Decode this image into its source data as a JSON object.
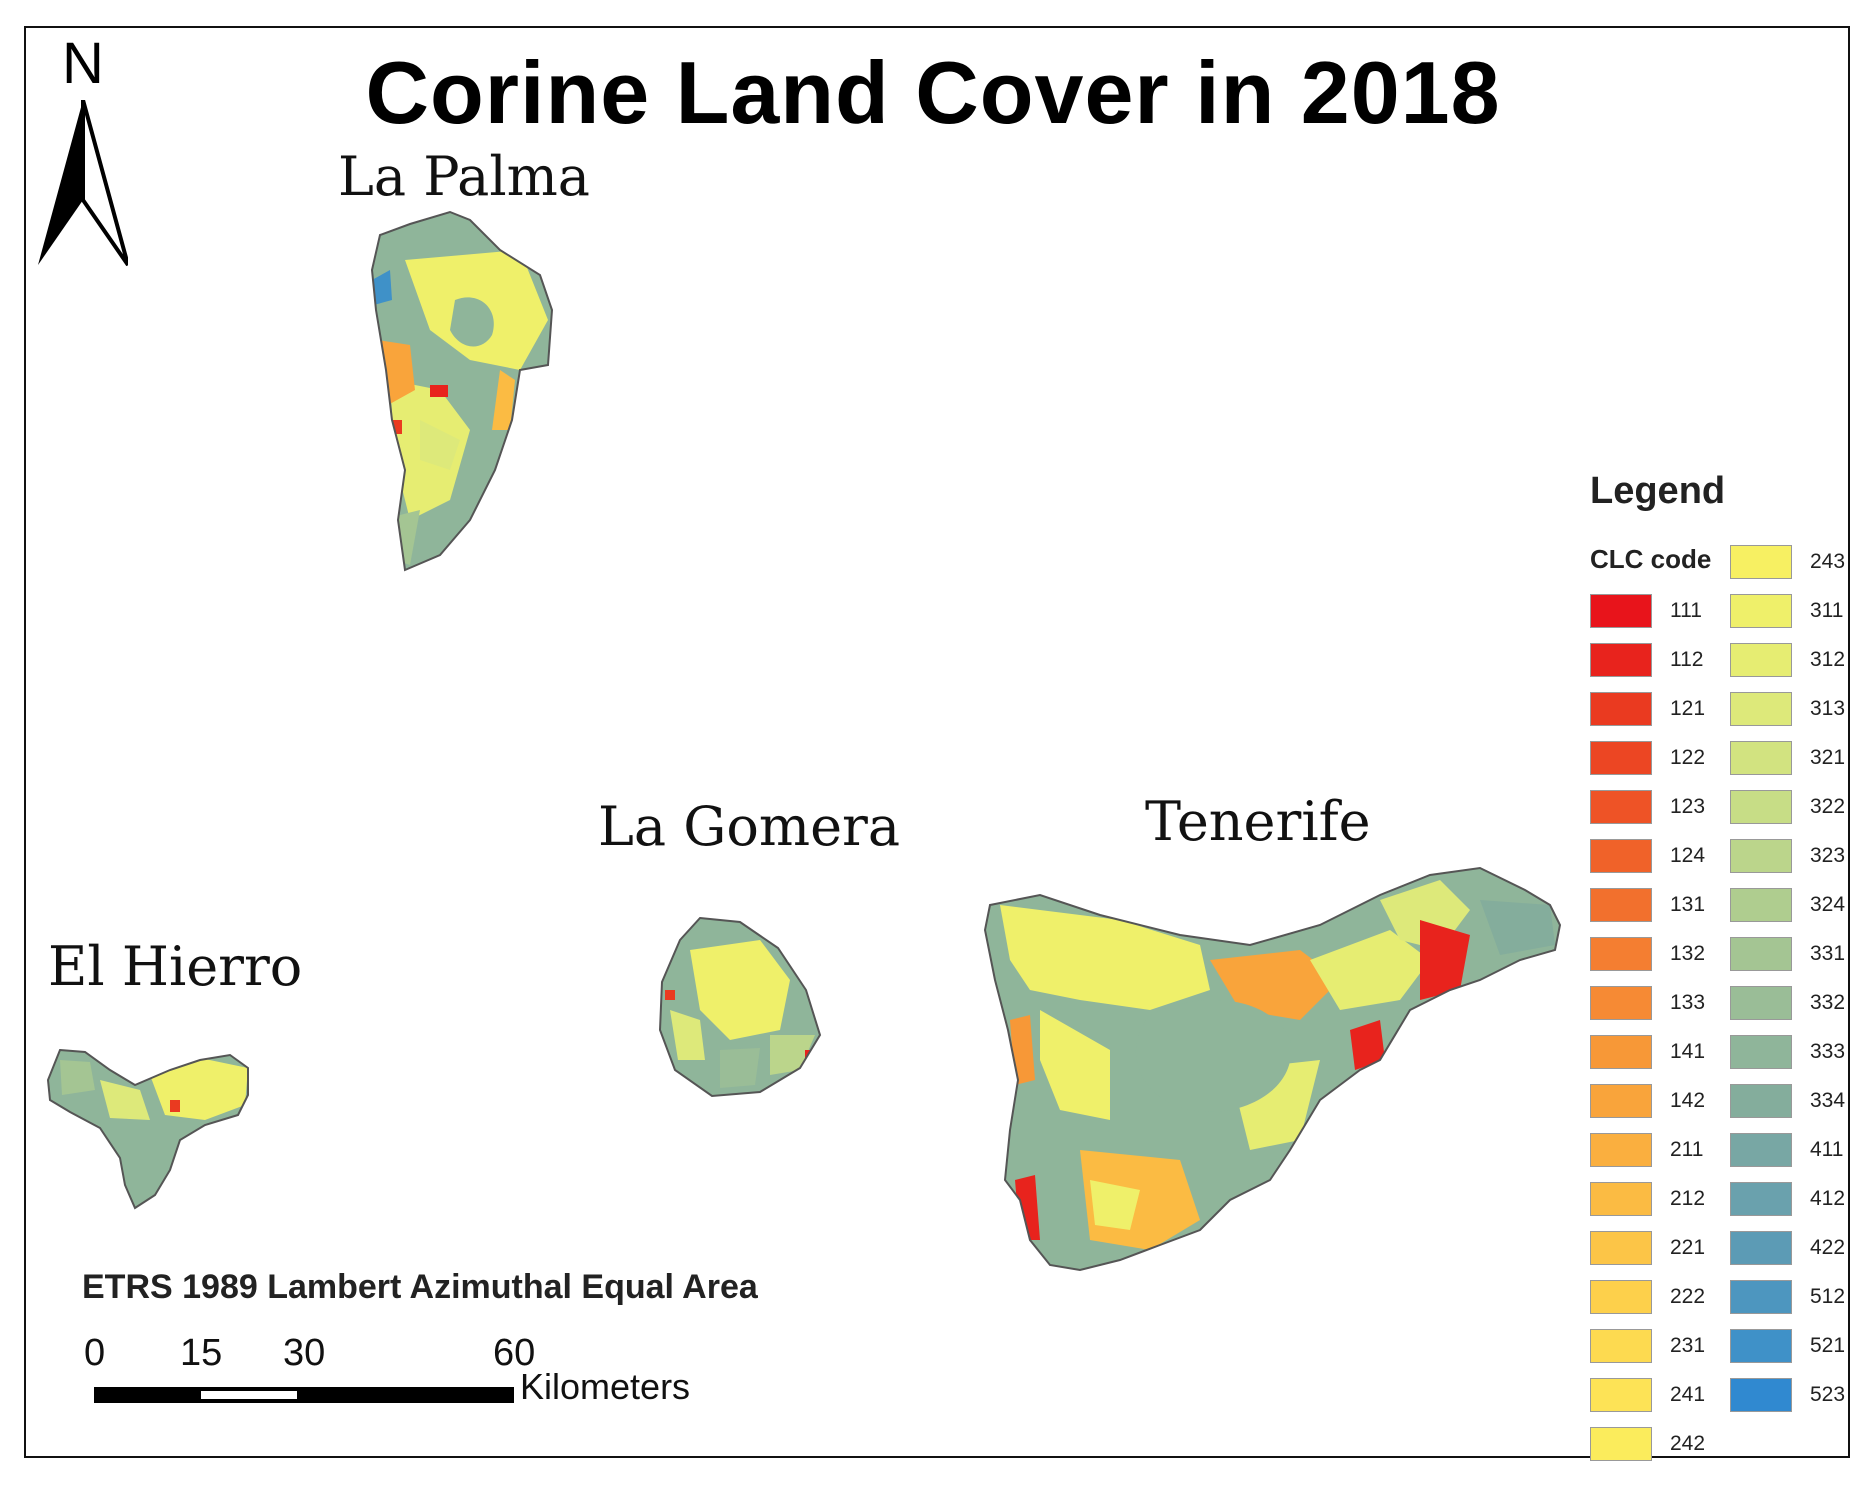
{
  "title": "Corine Land Cover in 2018",
  "north_label": "N",
  "islands": {
    "la_palma": "La Palma",
    "la_gomera": "La Gomera",
    "tenerife": "Tenerife",
    "el_hierro": "El Hierro"
  },
  "projection": "ETRS 1989 Lambert Azimuthal Equal Area",
  "scale": {
    "ticks": [
      "0",
      "15",
      "30",
      "60"
    ],
    "unit": "Kilometers"
  },
  "legend": {
    "title": "Legend",
    "subtitle": "CLC code",
    "column1": [
      {
        "code": "111",
        "color": "#e8141b"
      },
      {
        "code": "112",
        "color": "#e8231d"
      },
      {
        "code": "121",
        "color": "#ea3a20"
      },
      {
        "code": "122",
        "color": "#ec4623"
      },
      {
        "code": "123",
        "color": "#ee5326"
      },
      {
        "code": "124",
        "color": "#f06229"
      },
      {
        "code": "131",
        "color": "#f2702d"
      },
      {
        "code": "132",
        "color": "#f47e31"
      },
      {
        "code": "133",
        "color": "#f68a34"
      },
      {
        "code": "141",
        "color": "#f79837"
      },
      {
        "code": "142",
        "color": "#f9a43b"
      },
      {
        "code": "211",
        "color": "#faaf3f"
      },
      {
        "code": "212",
        "color": "#fbbb43"
      },
      {
        "code": "221",
        "color": "#fcc547"
      },
      {
        "code": "222",
        "color": "#fdd04b"
      },
      {
        "code": "231",
        "color": "#fdda50"
      },
      {
        "code": "241",
        "color": "#fde356"
      },
      {
        "code": "242",
        "color": "#fbec5c"
      }
    ],
    "column2": [
      {
        "code": "243",
        "color": "#f7f062"
      },
      {
        "code": "311",
        "color": "#eff06a"
      },
      {
        "code": "312",
        "color": "#e6ed72"
      },
      {
        "code": "313",
        "color": "#dde97a"
      },
      {
        "code": "321",
        "color": "#d2e380"
      },
      {
        "code": "322",
        "color": "#c7dd86"
      },
      {
        "code": "323",
        "color": "#bbd58b"
      },
      {
        "code": "324",
        "color": "#afcd8f"
      },
      {
        "code": "331",
        "color": "#a4c593"
      },
      {
        "code": "332",
        "color": "#9abd97"
      },
      {
        "code": "333",
        "color": "#8fb59a"
      },
      {
        "code": "334",
        "color": "#84ad9c"
      },
      {
        "code": "411",
        "color": "#78a7a4"
      },
      {
        "code": "412",
        "color": "#6aa1ad"
      },
      {
        "code": "422",
        "color": "#5c9bb5"
      },
      {
        "code": "512",
        "color": "#4d96bf"
      },
      {
        "code": "521",
        "color": "#3f91c8"
      },
      {
        "code": "523",
        "color": "#3089d0"
      }
    ]
  }
}
